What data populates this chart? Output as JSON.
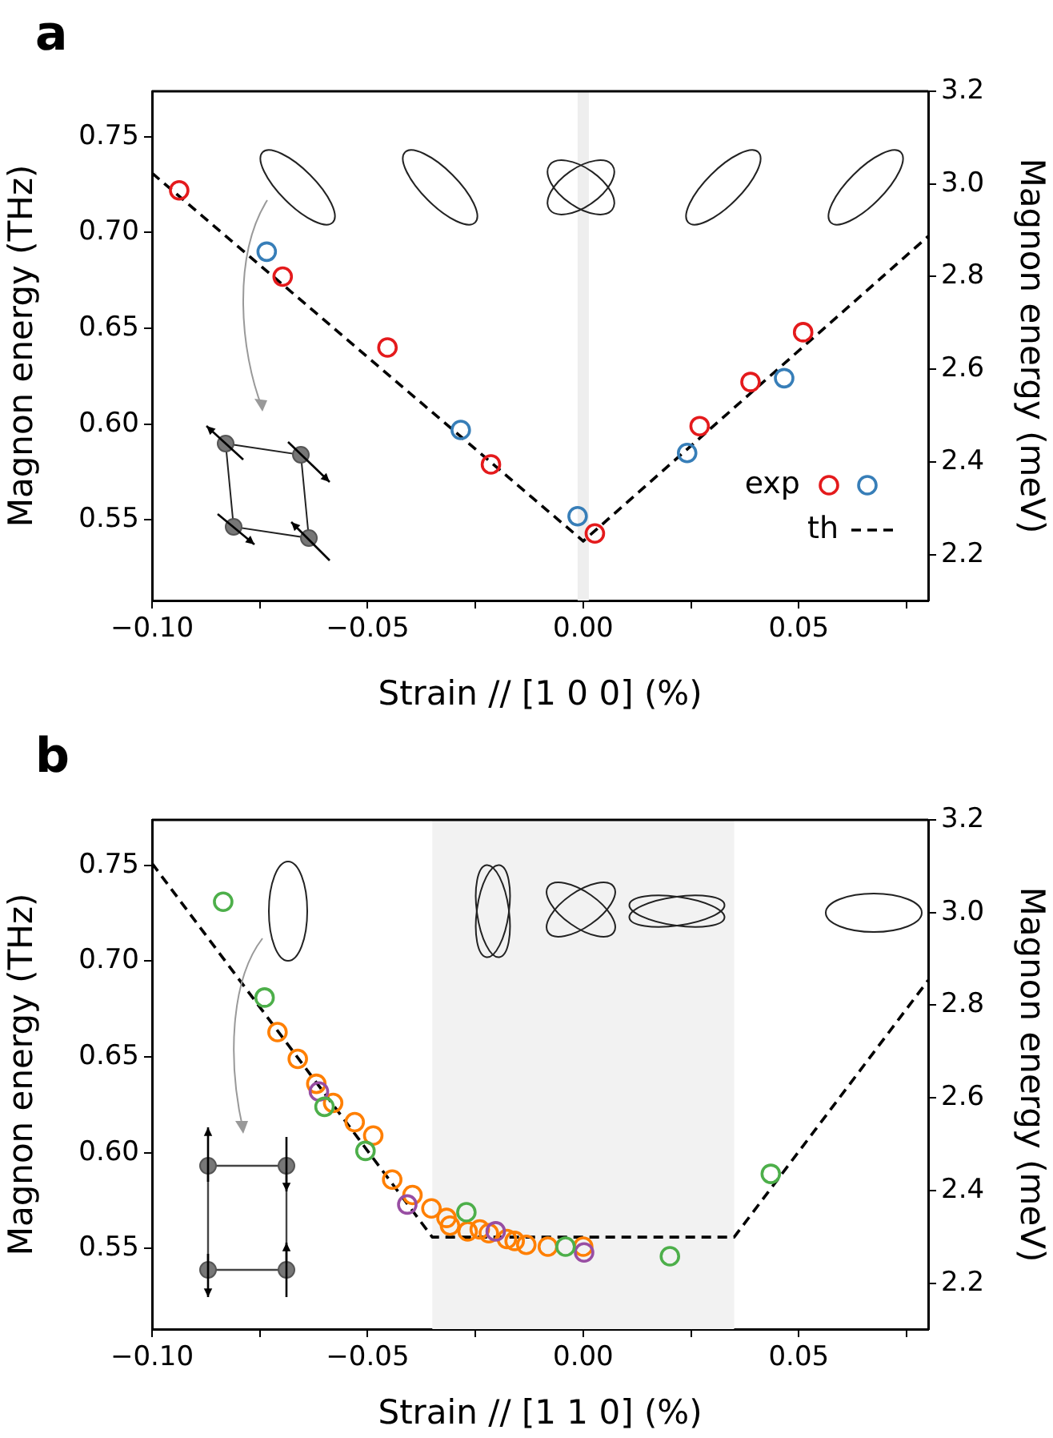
{
  "chart_data": [
    {
      "type": "scatter",
      "title": "a",
      "xlabel": "Strain // [1 0 0] (%)",
      "ylabel": "Magnon energy (THz)",
      "y2label": "Magnon energy (meV)",
      "xlim": [
        -0.1,
        0.08
      ],
      "xticks": [
        {
          "value": -0.1,
          "label": "−0.10"
        },
        {
          "value": -0.075,
          "label": null
        },
        {
          "value": -0.05,
          "label": "−0.05"
        },
        {
          "value": -0.025,
          "label": null
        },
        {
          "value": 0,
          "label": "0.00"
        },
        {
          "value": 0.025,
          "label": null
        },
        {
          "value": 0.05,
          "label": "0.05"
        },
        {
          "value": 0.075,
          "label": null
        }
      ],
      "ylim": [
        0.508,
        0.7737
      ],
      "yticks": [
        {
          "value": 0.55,
          "label": "0.55"
        },
        {
          "value": 0.6,
          "label": "0.60"
        },
        {
          "value": 0.65,
          "label": "0.65"
        },
        {
          "value": 0.7,
          "label": "0.70"
        },
        {
          "value": 0.75,
          "label": "0.75"
        }
      ],
      "y2lim": [
        2.101,
        3.2
      ],
      "y2ticks": [
        {
          "value": 2.2,
          "label": "2.2"
        },
        {
          "value": 2.4,
          "label": "2.4"
        },
        {
          "value": 2.6,
          "label": "2.6"
        },
        {
          "value": 2.8,
          "label": "2.8"
        },
        {
          "value": 3,
          "label": "3.0"
        },
        {
          "value": 3.2,
          "label": "3.2"
        }
      ],
      "grid": false,
      "legend": "bottom right",
      "bands": [
        {
          "axis": "x",
          "from": -0.0013,
          "to": 0.0013,
          "color": "#eeeeee"
        }
      ],
      "series": [
        {
          "name": "exp",
          "marker": "circle",
          "color": "#e41a1c",
          "x": [
            -0.0937,
            -0.0697,
            -0.0454,
            -0.0214,
            0.0027,
            0.027,
            0.0388,
            0.051
          ],
          "values": [
            0.722,
            0.677,
            0.64,
            0.579,
            0.543,
            0.599,
            0.622,
            0.648
          ]
        },
        {
          "marker": "circle",
          "color": "#377eb8",
          "x": [
            -0.0734,
            -0.0284,
            -0.0013,
            0.0241,
            0.0466
          ],
          "values": [
            0.69,
            0.597,
            0.552,
            0.585,
            0.624
          ]
        },
        {
          "name": "th",
          "type": "line",
          "marker": "none",
          "line_style": "dashed",
          "color": "#000000",
          "x": [
            -0.1,
            0,
            0.08
          ],
          "values": [
            0.731,
            0.539,
            0.698
          ]
        }
      ]
    },
    {
      "type": "scatter",
      "title": "b",
      "xlabel": "Strain // [1 1 0] (%)",
      "ylabel": "Magnon energy (THz)",
      "y2label": "Magnon energy (meV)",
      "xlim": [
        -0.1,
        0.08
      ],
      "xticks": [
        {
          "value": -0.1,
          "label": "−0.10"
        },
        {
          "value": -0.075,
          "label": null
        },
        {
          "value": -0.05,
          "label": "−0.05"
        },
        {
          "value": -0.025,
          "label": null
        },
        {
          "value": 0,
          "label": "0.00"
        },
        {
          "value": 0.025,
          "label": null
        },
        {
          "value": 0.05,
          "label": "0.05"
        },
        {
          "value": 0.075,
          "label": null
        }
      ],
      "ylim": [
        0.508,
        0.7737
      ],
      "yticks": [
        {
          "value": 0.55,
          "label": "0.55"
        },
        {
          "value": 0.6,
          "label": "0.60"
        },
        {
          "value": 0.65,
          "label": "0.65"
        },
        {
          "value": 0.7,
          "label": "0.70"
        },
        {
          "value": 0.75,
          "label": "0.75"
        }
      ],
      "y2lim": [
        2.101,
        3.2
      ],
      "y2ticks": [
        {
          "value": 2.2,
          "label": "2.2"
        },
        {
          "value": 2.4,
          "label": "2.4"
        },
        {
          "value": 2.6,
          "label": "2.6"
        },
        {
          "value": 2.8,
          "label": "2.8"
        },
        {
          "value": 3,
          "label": "3.0"
        },
        {
          "value": 3.2,
          "label": "3.2"
        }
      ],
      "grid": false,
      "bands": [
        {
          "axis": "x",
          "from": -0.035,
          "to": 0.035,
          "color": "#f2f2f2"
        }
      ],
      "series": [
        {
          "type": "line",
          "marker": "none",
          "line_style": "dashed",
          "color": "#000000",
          "x": [
            -0.1,
            -0.035,
            0.035,
            0.08
          ],
          "values": [
            0.751,
            0.556,
            0.556,
            0.69
          ]
        },
        {
          "marker": "circle",
          "color": "#4daf4a",
          "x": [
            -0.0835,
            -0.0739,
            -0.06,
            -0.0505,
            -0.0271,
            -0.0041,
            0.0201,
            0.0435
          ],
          "values": [
            0.731,
            0.681,
            0.624,
            0.601,
            0.569,
            0.551,
            0.546,
            0.589
          ]
        },
        {
          "marker": "circle",
          "color": "#984ea3",
          "x": [
            -0.0613,
            -0.0408,
            -0.0203,
            0.0002
          ],
          "values": [
            0.632,
            0.573,
            0.559,
            0.548
          ]
        },
        {
          "marker": "circle",
          "color": "#ff7f00",
          "x": [
            -0.0709,
            -0.0662,
            -0.0619,
            -0.058,
            -0.053,
            -0.0487,
            -0.0443,
            -0.0396,
            -0.0352,
            -0.0317,
            -0.0309,
            -0.0268,
            -0.024,
            -0.0219,
            -0.0177,
            -0.0159,
            -0.0132,
            -0.0082,
            0
          ],
          "values": [
            0.663,
            0.649,
            0.636,
            0.626,
            0.616,
            0.609,
            0.586,
            0.578,
            0.571,
            0.566,
            0.562,
            0.559,
            0.56,
            0.558,
            0.555,
            0.554,
            0.552,
            0.551,
            0.551
          ]
        }
      ]
    }
  ]
}
